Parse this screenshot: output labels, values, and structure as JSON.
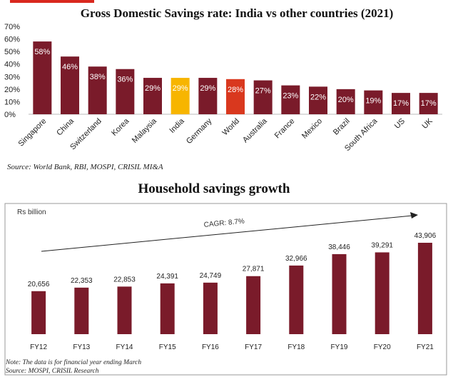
{
  "chart_data": [
    {
      "type": "bar",
      "title": "Gross Domestic Savings rate: India vs other countries (2021)",
      "categories": [
        "Singapore",
        "China",
        "Switzerland",
        "Korea",
        "Malaysia",
        "India",
        "Germany",
        "World",
        "Australia",
        "France",
        "Mexico",
        "Brazil",
        "South Africa",
        "US",
        "UK"
      ],
      "values": [
        58,
        46,
        38,
        36,
        29,
        29,
        29,
        28,
        27,
        23,
        22,
        20,
        19,
        17,
        17
      ],
      "data_labels": [
        "58%",
        "46%",
        "38%",
        "36%",
        "29%",
        "29%",
        "29%",
        "28%",
        "27%",
        "23%",
        "22%",
        "20%",
        "19%",
        "17%",
        "17%"
      ],
      "y_ticks": [
        "0%",
        "10%",
        "20%",
        "30%",
        "40%",
        "50%",
        "60%",
        "70%"
      ],
      "ylim": [
        0,
        70
      ],
      "grid": false,
      "bar_colors": {
        "default": "#7a1b2a",
        "India": "#f7b500",
        "World": "#d9381e"
      },
      "source": "Source: World Bank, RBI, MOSPI, CRISIL MI&A"
    },
    {
      "type": "bar",
      "title": "Household savings growth",
      "unit_label": "Rs billion",
      "categories": [
        "FY12",
        "FY13",
        "FY14",
        "FY15",
        "FY16",
        "FY17",
        "FY18",
        "FY19",
        "FY20",
        "FY21"
      ],
      "values": [
        20656,
        22353,
        22853,
        24391,
        24749,
        27871,
        32966,
        38446,
        39291,
        43906
      ],
      "data_labels": [
        "20,656",
        "22,353",
        "22,853",
        "24,391",
        "24,749",
        "27,871",
        "32,966",
        "38,446",
        "39,291",
        "43,906"
      ],
      "annotation": "CAGR: 8.7%",
      "bar_color": "#7a1b2a",
      "note": "Note: The data is for financial year ending March",
      "source": "Source: MOSPI, CRISIL Research"
    }
  ]
}
